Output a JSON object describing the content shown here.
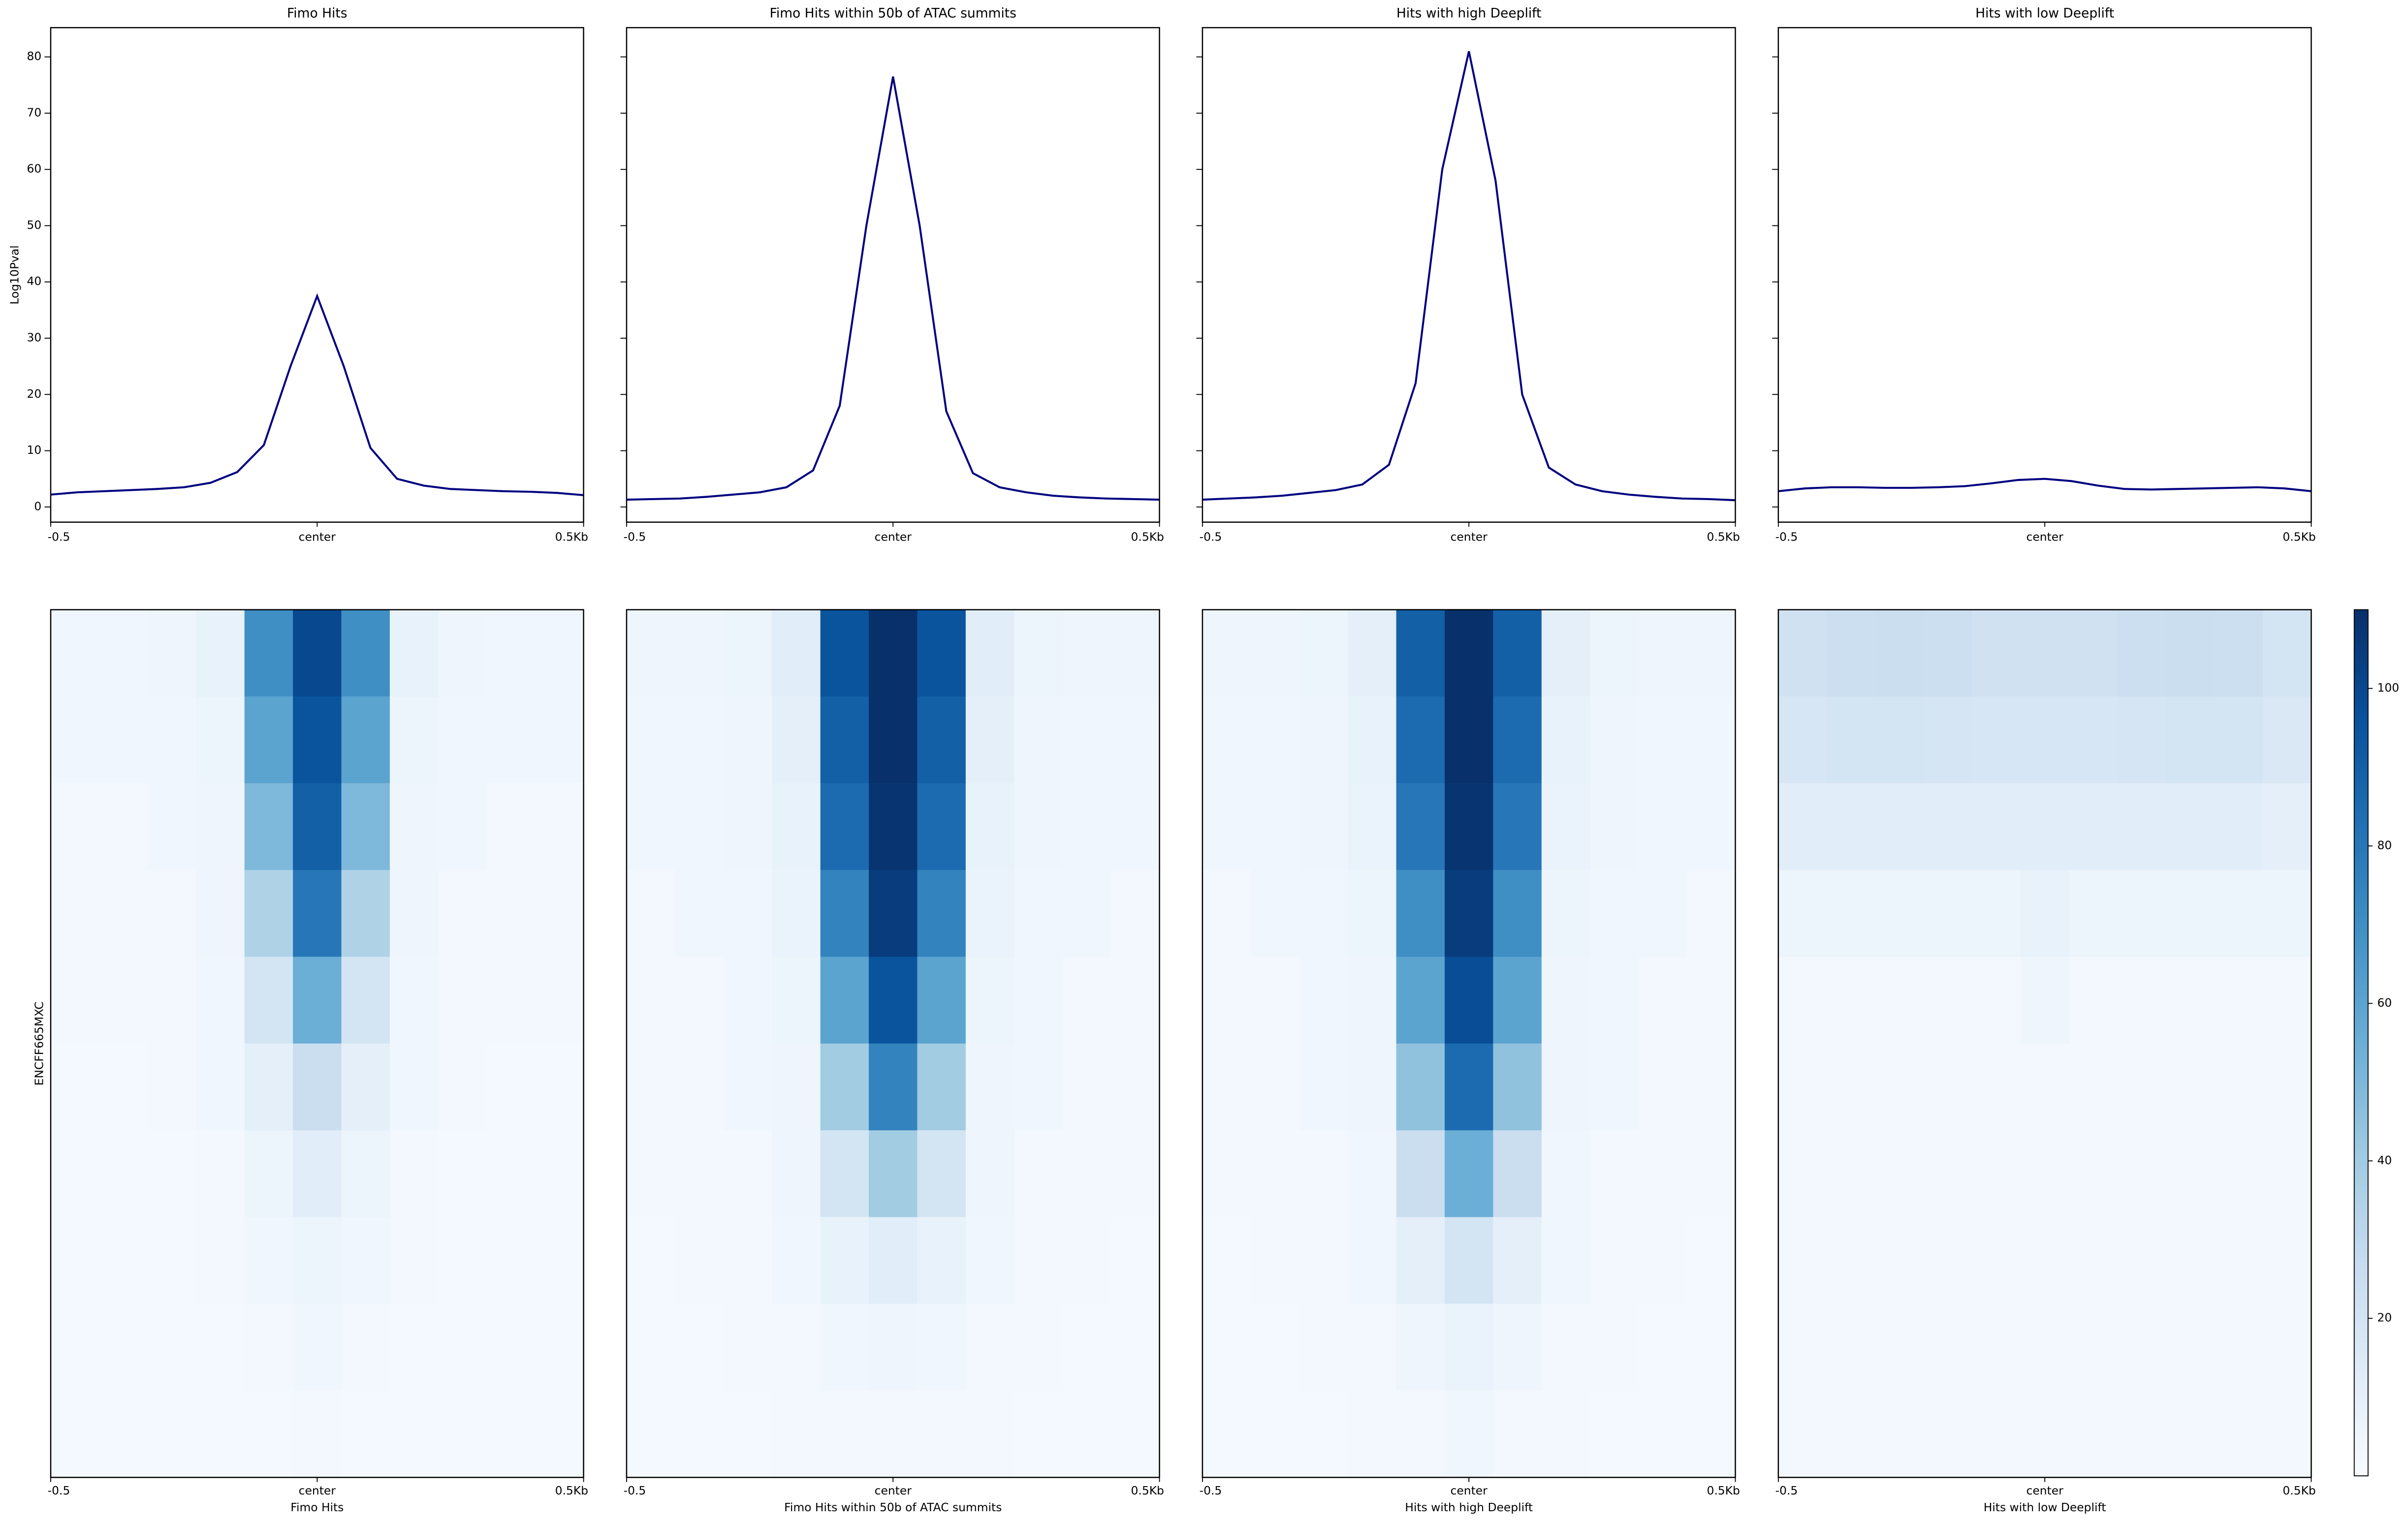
{
  "chart_data": [
    {
      "type": "line",
      "title": "Fimo Hits",
      "ylabel": "Log10Pval",
      "x": [
        -0.5,
        -0.45,
        -0.4,
        -0.35,
        -0.3,
        -0.25,
        -0.2,
        -0.15,
        -0.1,
        -0.05,
        0,
        0.05,
        0.1,
        0.15,
        0.2,
        0.25,
        0.3,
        0.35,
        0.4,
        0.45,
        0.5
      ],
      "series": [
        {
          "color": "#000080",
          "values": [
            2.2,
            2.6,
            2.8,
            3.0,
            3.2,
            3.5,
            4.3,
            6.2,
            11,
            25,
            37.5,
            25,
            10.5,
            5,
            3.8,
            3.2,
            3.0,
            2.8,
            2.7,
            2.5,
            2.1
          ]
        }
      ],
      "xlim": [
        -0.5,
        0.5
      ],
      "xticks": [
        -0.5,
        {
          "value": 0,
          "label": "center"
        },
        {
          "value": 0.5,
          "label": "0.5Kb"
        }
      ],
      "ylim": [
        -2.7,
        85.2
      ],
      "yticks": [
        0,
        10,
        20,
        30,
        40,
        50,
        60,
        70,
        80
      ],
      "ytick_labels": true
    },
    {
      "type": "line",
      "title": "Fimo Hits within 50b of ATAC summits",
      "x": [
        -0.5,
        -0.45,
        -0.4,
        -0.35,
        -0.3,
        -0.25,
        -0.2,
        -0.15,
        -0.1,
        -0.05,
        0,
        0.05,
        0.1,
        0.15,
        0.2,
        0.25,
        0.3,
        0.35,
        0.4,
        0.45,
        0.5
      ],
      "series": [
        {
          "color": "#000080",
          "values": [
            1.3,
            1.4,
            1.5,
            1.8,
            2.2,
            2.6,
            3.5,
            6.5,
            18,
            50,
            76.5,
            50,
            17,
            6,
            3.5,
            2.6,
            2.0,
            1.7,
            1.5,
            1.4,
            1.3
          ]
        }
      ],
      "xlim": [
        -0.5,
        0.5
      ],
      "xticks": [
        -0.5,
        {
          "value": 0,
          "label": "center"
        },
        {
          "value": 0.5,
          "label": "0.5Kb"
        }
      ],
      "ylim": [
        -2.7,
        85.2
      ],
      "yticks": [
        0,
        10,
        20,
        30,
        40,
        50,
        60,
        70,
        80
      ],
      "ytick_labels": false
    },
    {
      "type": "line",
      "title": "Hits with high Deeplift",
      "x": [
        -0.5,
        -0.45,
        -0.4,
        -0.35,
        -0.3,
        -0.25,
        -0.2,
        -0.15,
        -0.1,
        -0.05,
        0,
        0.05,
        0.1,
        0.15,
        0.2,
        0.25,
        0.3,
        0.35,
        0.4,
        0.45,
        0.5
      ],
      "series": [
        {
          "color": "#000080",
          "values": [
            1.3,
            1.5,
            1.7,
            2.0,
            2.5,
            3.0,
            4.0,
            7.5,
            22,
            60,
            81,
            58,
            20,
            7,
            4,
            2.8,
            2.2,
            1.8,
            1.5,
            1.4,
            1.2
          ]
        }
      ],
      "xlim": [
        -0.5,
        0.5
      ],
      "xticks": [
        -0.5,
        {
          "value": 0,
          "label": "center"
        },
        {
          "value": 0.5,
          "label": "0.5Kb"
        }
      ],
      "ylim": [
        -2.7,
        85.2
      ],
      "yticks": [
        0,
        10,
        20,
        30,
        40,
        50,
        60,
        70,
        80
      ],
      "ytick_labels": false
    },
    {
      "type": "line",
      "title": "Hits with low Deeplift",
      "x": [
        -0.5,
        -0.45,
        -0.4,
        -0.35,
        -0.3,
        -0.25,
        -0.2,
        -0.15,
        -0.1,
        -0.05,
        0,
        0.05,
        0.1,
        0.15,
        0.2,
        0.25,
        0.3,
        0.35,
        0.4,
        0.45,
        0.5
      ],
      "series": [
        {
          "color": "#000080",
          "values": [
            2.8,
            3.3,
            3.5,
            3.5,
            3.4,
            3.4,
            3.5,
            3.7,
            4.2,
            4.8,
            5.0,
            4.6,
            3.8,
            3.2,
            3.1,
            3.2,
            3.3,
            3.4,
            3.5,
            3.3,
            2.8
          ]
        }
      ],
      "xlim": [
        -0.5,
        0.5
      ],
      "xticks": [
        -0.5,
        {
          "value": 0,
          "label": "center"
        },
        {
          "value": 0.5,
          "label": "0.5Kb"
        }
      ],
      "ylim": [
        -2.7,
        85.2
      ],
      "yticks": [
        0,
        10,
        20,
        30,
        40,
        50,
        60,
        70,
        80
      ],
      "ytick_labels": false
    },
    {
      "type": "heatmap",
      "xlabel": "Fimo Hits",
      "ylabel": "ENCFF665MXC",
      "xlim": [
        -0.5,
        0.5
      ],
      "xticks": [
        -0.5,
        {
          "value": 0,
          "label": "center"
        },
        {
          "value": 0.5,
          "label": "0.5Kb"
        }
      ],
      "values": [
        [
          4,
          4,
          5,
          8,
          70,
          100,
          70,
          8,
          5,
          4,
          4
        ],
        [
          4,
          4,
          4,
          6,
          60,
          95,
          60,
          6,
          4,
          4,
          4
        ],
        [
          3,
          3,
          4,
          5,
          50,
          90,
          50,
          5,
          4,
          3,
          3
        ],
        [
          3,
          3,
          3,
          5,
          35,
          80,
          35,
          5,
          3,
          3,
          3
        ],
        [
          3,
          3,
          3,
          4,
          20,
          55,
          20,
          4,
          3,
          3,
          3
        ],
        [
          2,
          2,
          3,
          4,
          10,
          25,
          10,
          4,
          3,
          2,
          2
        ],
        [
          2,
          2,
          2,
          3,
          6,
          12,
          6,
          3,
          2,
          2,
          2
        ],
        [
          2,
          2,
          2,
          3,
          4,
          6,
          4,
          3,
          2,
          2,
          2
        ],
        [
          2,
          2,
          2,
          2,
          3,
          4,
          3,
          2,
          2,
          2,
          2
        ],
        [
          2,
          2,
          2,
          2,
          2,
          3,
          2,
          2,
          2,
          2,
          2
        ]
      ]
    },
    {
      "type": "heatmap",
      "xlabel": "Fimo Hits within 50b of ATAC summits",
      "xlim": [
        -0.5,
        0.5
      ],
      "xticks": [
        -0.5,
        {
          "value": 0,
          "label": "center"
        },
        {
          "value": 0.5,
          "label": "0.5Kb"
        }
      ],
      "values": [
        [
          5,
          5,
          6,
          12,
          95,
          110,
          95,
          12,
          6,
          5,
          5
        ],
        [
          4,
          4,
          5,
          10,
          90,
          110,
          90,
          10,
          5,
          4,
          4
        ],
        [
          4,
          4,
          5,
          8,
          85,
          108,
          85,
          8,
          5,
          4,
          4
        ],
        [
          3,
          4,
          4,
          7,
          75,
          105,
          75,
          7,
          4,
          4,
          3
        ],
        [
          3,
          3,
          4,
          6,
          60,
          95,
          60,
          6,
          4,
          3,
          3
        ],
        [
          3,
          3,
          4,
          5,
          40,
          75,
          40,
          5,
          4,
          3,
          3
        ],
        [
          3,
          3,
          3,
          5,
          20,
          40,
          20,
          5,
          3,
          3,
          3
        ],
        [
          2,
          3,
          3,
          4,
          8,
          12,
          8,
          4,
          3,
          3,
          2
        ],
        [
          2,
          2,
          3,
          3,
          4,
          5,
          4,
          3,
          3,
          2,
          2
        ],
        [
          2,
          2,
          2,
          3,
          3,
          3,
          3,
          3,
          2,
          2,
          2
        ]
      ]
    },
    {
      "type": "heatmap",
      "xlabel": "Hits with high Deeplift",
      "xlim": [
        -0.5,
        0.5
      ],
      "xticks": [
        -0.5,
        {
          "value": 0,
          "label": "center"
        },
        {
          "value": 0.5,
          "label": "0.5Kb"
        }
      ],
      "values": [
        [
          5,
          5,
          6,
          10,
          90,
          110,
          90,
          10,
          6,
          5,
          5
        ],
        [
          4,
          4,
          5,
          8,
          85,
          110,
          85,
          8,
          5,
          4,
          4
        ],
        [
          4,
          4,
          5,
          7,
          80,
          108,
          80,
          7,
          5,
          4,
          4
        ],
        [
          3,
          4,
          4,
          6,
          70,
          105,
          70,
          6,
          4,
          4,
          3
        ],
        [
          3,
          3,
          4,
          5,
          60,
          98,
          60,
          5,
          4,
          3,
          3
        ],
        [
          3,
          3,
          4,
          5,
          45,
          85,
          45,
          5,
          4,
          3,
          3
        ],
        [
          3,
          3,
          3,
          4,
          25,
          55,
          25,
          4,
          3,
          3,
          3
        ],
        [
          2,
          3,
          3,
          4,
          10,
          20,
          10,
          4,
          3,
          3,
          2
        ],
        [
          2,
          2,
          3,
          3,
          5,
          7,
          5,
          3,
          3,
          2,
          2
        ],
        [
          2,
          2,
          2,
          3,
          3,
          4,
          3,
          3,
          2,
          2,
          2
        ]
      ]
    },
    {
      "type": "heatmap",
      "xlabel": "Hits with low Deeplift",
      "xlim": [
        -0.5,
        0.5
      ],
      "xticks": [
        -0.5,
        {
          "value": 0,
          "label": "center"
        },
        {
          "value": 0.5,
          "label": "0.5Kb"
        }
      ],
      "values": [
        [
          22,
          24,
          25,
          24,
          22,
          22,
          22,
          24,
          25,
          24,
          20
        ],
        [
          18,
          20,
          20,
          19,
          18,
          18,
          18,
          19,
          20,
          20,
          16
        ],
        [
          12,
          12,
          12,
          12,
          12,
          12,
          12,
          12,
          12,
          12,
          10
        ],
        [
          6,
          6,
          6,
          6,
          6,
          8,
          6,
          6,
          6,
          6,
          6
        ],
        [
          3,
          3,
          3,
          3,
          3,
          5,
          3,
          3,
          3,
          3,
          3
        ],
        [
          3,
          3,
          3,
          3,
          3,
          3,
          3,
          3,
          3,
          3,
          3
        ],
        [
          3,
          3,
          3,
          3,
          3,
          3,
          3,
          3,
          3,
          3,
          3
        ],
        [
          3,
          3,
          3,
          3,
          3,
          3,
          3,
          3,
          3,
          3,
          3
        ],
        [
          3,
          3,
          3,
          3,
          3,
          3,
          3,
          3,
          3,
          3,
          3
        ],
        [
          3,
          3,
          3,
          3,
          3,
          3,
          3,
          3,
          3,
          3,
          3
        ]
      ]
    },
    {
      "type": "colorbar",
      "zlim": [
        0,
        110
      ],
      "ticks": [
        20,
        40,
        60,
        80,
        100
      ],
      "colormap": [
        "#f7fbff",
        "#deebf7",
        "#c6dbef",
        "#9ecae1",
        "#6baed6",
        "#4292c6",
        "#2171b5",
        "#08519c",
        "#08306b"
      ]
    }
  ]
}
